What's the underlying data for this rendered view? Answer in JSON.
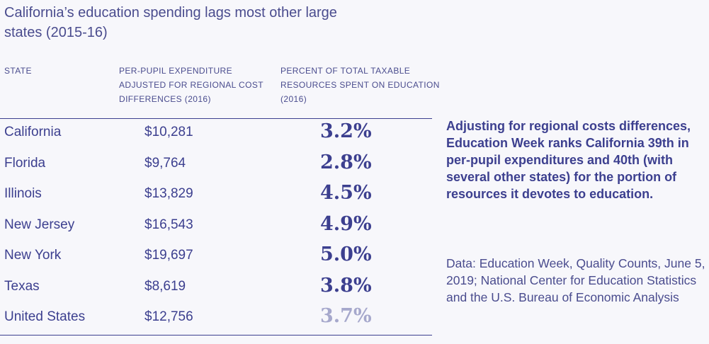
{
  "chart_data": {
    "type": "table",
    "title": "California’s education spending lags most other large states (2015-16)",
    "columns": [
      "STATE",
      "PER-PUPIL EXPENDITURE ADJUSTED FOR REGIONAL COST DIFFERENCES (2016)",
      "PERCENT OF TOTAL TAXABLE RESOURCES SPENT ON EDUCATION (2016)"
    ],
    "rows": [
      {
        "state": "California",
        "per_pupil": "$10,281",
        "percent": "3.2%"
      },
      {
        "state": "Florida",
        "per_pupil": "$9,764",
        "percent": "2.8%"
      },
      {
        "state": "Illinois",
        "per_pupil": "$13,829",
        "percent": "4.5%"
      },
      {
        "state": "New Jersey",
        "per_pupil": "$16,543",
        "percent": "4.9%"
      },
      {
        "state": "New York",
        "per_pupil": "$19,697",
        "percent": "5.0%"
      },
      {
        "state": "Texas",
        "per_pupil": "$8,619",
        "percent": "3.8%"
      },
      {
        "state": "United States",
        "per_pupil": "$12,756",
        "percent": "3.7%"
      }
    ],
    "highlight_note": "Adjusting for regional costs differences, Education Week ranks California 39th in per-pupil expenditures and 40th (with several other states) for the portion of resources it devotes to education.",
    "source": "Data: Education Week, Quality Counts, June 5, 2019; National Center for Education Statistics and the U.S. Bureau of Economic Analysis"
  },
  "colors": {
    "text": "#3c3f8f",
    "muted_value": "#a6a8cc",
    "background": "#f7f7fb"
  }
}
